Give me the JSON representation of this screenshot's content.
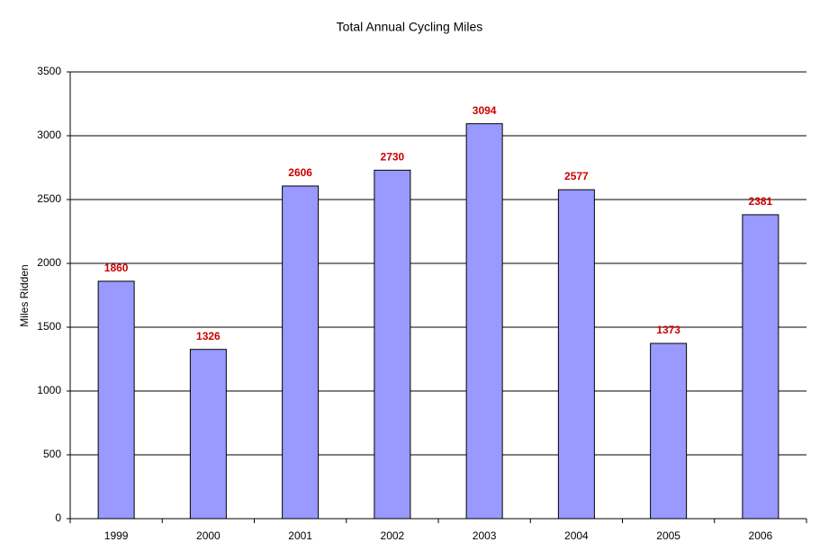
{
  "chart_data": {
    "type": "bar",
    "title": "Total Annual Cycling Miles",
    "y_label": "Miles Ridden",
    "categories": [
      "1999",
      "2000",
      "2001",
      "2002",
      "2003",
      "2004",
      "2005",
      "2006"
    ],
    "values": [
      1860,
      1326,
      2606,
      2730,
      3094,
      2577,
      1373,
      2381
    ],
    "color": "#9999ff",
    "value_label_color": "#cc0000",
    "ylim": [
      0,
      3500
    ],
    "yticks": [
      0,
      500,
      1000,
      1500,
      2000,
      2500,
      3000,
      3500
    ],
    "grid": true
  }
}
